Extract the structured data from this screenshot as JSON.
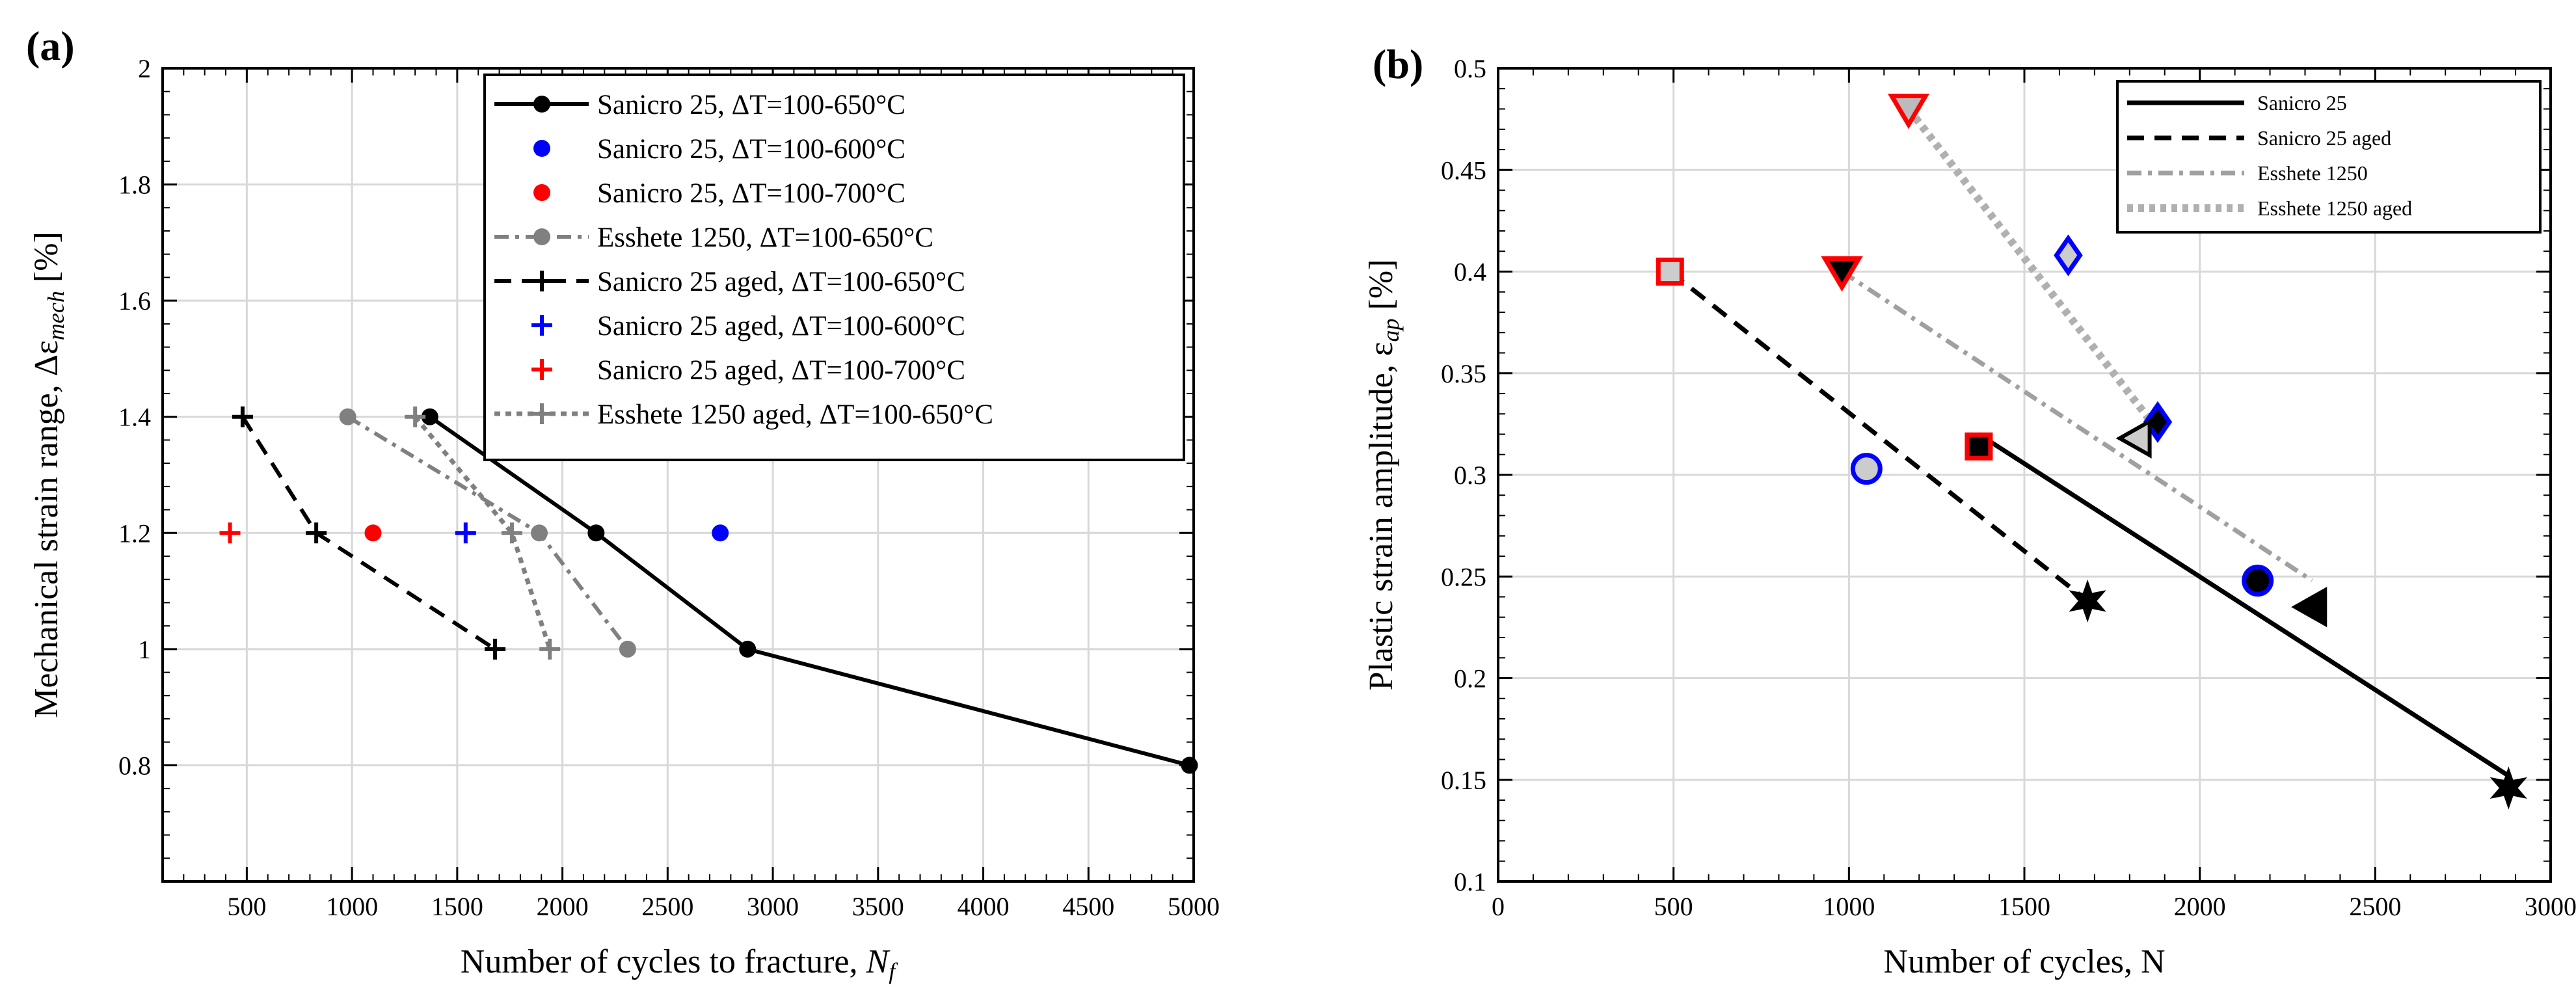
{
  "chart_data": [
    {
      "panel": "(a)",
      "type": "line",
      "xlabel": "Number of cycles to fracture, ",
      "xlabel_var": "N",
      "xlabel_sub": "f",
      "ylabel": "Mechanical strain range, Δε",
      "ylabel_sub": "mech",
      "ylabel_unit": " [%]",
      "xlim": [
        100,
        5000
      ],
      "ylim": [
        0.6,
        2.0
      ],
      "xticks": [
        500,
        1000,
        1500,
        2000,
        2500,
        3000,
        3500,
        4000,
        4500,
        5000
      ],
      "yticks": [
        0.8,
        1,
        1.2,
        1.4,
        1.6,
        1.8,
        2
      ],
      "xtick_labels": [
        "500",
        "1000",
        "1500",
        "2000",
        "2500",
        "3000",
        "3500",
        "4000",
        "4500",
        "5000"
      ],
      "ytick_labels": [
        "0.8",
        "1",
        "1.2",
        "1.4",
        "1.6",
        "1.8",
        "2"
      ],
      "grid": true,
      "legend_position": "top-right",
      "series": [
        {
          "name": "Sanicro 25, ΔT=100-650°C",
          "color": "#000000",
          "line": "solid",
          "marker": "circle",
          "x": [
            1370,
            2160,
            2880,
            4980
          ],
          "y": [
            1.4,
            1.2,
            1.0,
            0.8
          ]
        },
        {
          "name": "Sanicro 25, ΔT=100-600°C",
          "color": "#0000ff",
          "line": "none",
          "marker": "circle",
          "x": [
            2750
          ],
          "y": [
            1.2
          ]
        },
        {
          "name": "Sanicro 25, ΔT=100-700°C",
          "color": "#ff0000",
          "line": "none",
          "marker": "circle",
          "x": [
            1100
          ],
          "y": [
            1.2
          ]
        },
        {
          "name": "Esshete 1250, ΔT=100-650°C",
          "color": "#808080",
          "line": "dashdot",
          "marker": "circle",
          "x": [
            980,
            1890,
            2310
          ],
          "y": [
            1.4,
            1.2,
            1.0
          ]
        },
        {
          "name": "Sanicro 25 aged, ΔT=100-650°C",
          "color": "#000000",
          "line": "dashed",
          "marker": "plus",
          "x": [
            480,
            830,
            1680
          ],
          "y": [
            1.4,
            1.2,
            1.0
          ]
        },
        {
          "name": "Sanicro 25 aged, ΔT=100-600°C",
          "color": "#0000ff",
          "line": "none",
          "marker": "plus",
          "x": [
            1540
          ],
          "y": [
            1.2
          ]
        },
        {
          "name": "Sanicro 25 aged, ΔT=100-700°C",
          "color": "#ff0000",
          "line": "none",
          "marker": "plus",
          "x": [
            420
          ],
          "y": [
            1.2
          ]
        },
        {
          "name": "Esshete 1250 aged, ΔT=100-650°C",
          "color": "#808080",
          "line": "dotted",
          "marker": "plus",
          "x": [
            1300,
            1760,
            1940
          ],
          "y": [
            1.4,
            1.2,
            1.0
          ]
        }
      ]
    },
    {
      "panel": "(b)",
      "type": "line",
      "xlabel": "Number of cycles, N",
      "ylabel": "Plastic strain amplitude, ε",
      "ylabel_sub": "ap",
      "ylabel_unit": " [%]",
      "xlim": [
        0,
        3000
      ],
      "ylim": [
        0.1,
        0.5
      ],
      "xticks": [
        0,
        500,
        1000,
        1500,
        2000,
        2500,
        3000
      ],
      "yticks": [
        0.1,
        0.15,
        0.2,
        0.25,
        0.3,
        0.35,
        0.4,
        0.45,
        0.5
      ],
      "xtick_labels": [
        "0",
        "500",
        "1000",
        "1500",
        "2000",
        "2500",
        "3000"
      ],
      "ytick_labels": [
        "0.1",
        "0.15",
        "0.2",
        "0.25",
        "0.3",
        "0.35",
        "0.4",
        "0.45",
        "0.5"
      ],
      "grid": true,
      "legend_position": "top-right",
      "series": [
        {
          "name": "Sanicro 25",
          "color": "#000000",
          "line": "solid",
          "x": [
            1370,
            2880
          ],
          "y": [
            0.32,
            0.152
          ]
        },
        {
          "name": "Sanicro 25 aged",
          "color": "#000000",
          "line": "dashed",
          "x": [
            490,
            1680
          ],
          "y": [
            0.4,
            0.238
          ]
        },
        {
          "name": "Esshete 1250",
          "color": "#a0a0a0",
          "line": "dashdot",
          "x": [
            980,
            2320
          ],
          "y": [
            0.4,
            0.248
          ]
        },
        {
          "name": "Esshete 1250 aged",
          "color": "#b0b0b0",
          "line": "dotted",
          "x": [
            1170,
            1880
          ],
          "y": [
            0.48,
            0.322
          ]
        }
      ],
      "markers": [
        {
          "shape": "square",
          "x": 490,
          "y": 0.4,
          "outline": "#ff0000",
          "fill": "#cccccc"
        },
        {
          "shape": "circle",
          "x": 1050,
          "y": 0.303,
          "outline": "#0000ff",
          "fill": "#cccccc"
        },
        {
          "shape": "star",
          "x": 1680,
          "y": 0.238,
          "outline": "#000000",
          "fill": "#000000"
        },
        {
          "shape": "square",
          "x": 1370,
          "y": 0.314,
          "outline": "#ff0000",
          "fill": "#000000"
        },
        {
          "shape": "circle",
          "x": 2165,
          "y": 0.248,
          "outline": "#0000ff",
          "fill": "#000000"
        },
        {
          "shape": "star",
          "x": 2880,
          "y": 0.146,
          "outline": "#000000",
          "fill": "#000000"
        },
        {
          "shape": "triangle-down",
          "x": 980,
          "y": 0.4,
          "outline": "#ff0000",
          "fill": "#000000"
        },
        {
          "shape": "diamond",
          "x": 1880,
          "y": 0.326,
          "outline": "#0000ff",
          "fill": "#000000"
        },
        {
          "shape": "triangle-left",
          "x": 2320,
          "y": 0.235,
          "outline": "#000000",
          "fill": "#000000"
        },
        {
          "shape": "triangle-down",
          "x": 1170,
          "y": 0.48,
          "outline": "#ff0000",
          "fill": "#bbbbbb"
        },
        {
          "shape": "diamond",
          "x": 1625,
          "y": 0.408,
          "outline": "#0000ff",
          "fill": "#cccccc"
        },
        {
          "shape": "triangle-left",
          "x": 1820,
          "y": 0.318,
          "outline": "#000000",
          "fill": "#cccccc"
        }
      ]
    }
  ]
}
